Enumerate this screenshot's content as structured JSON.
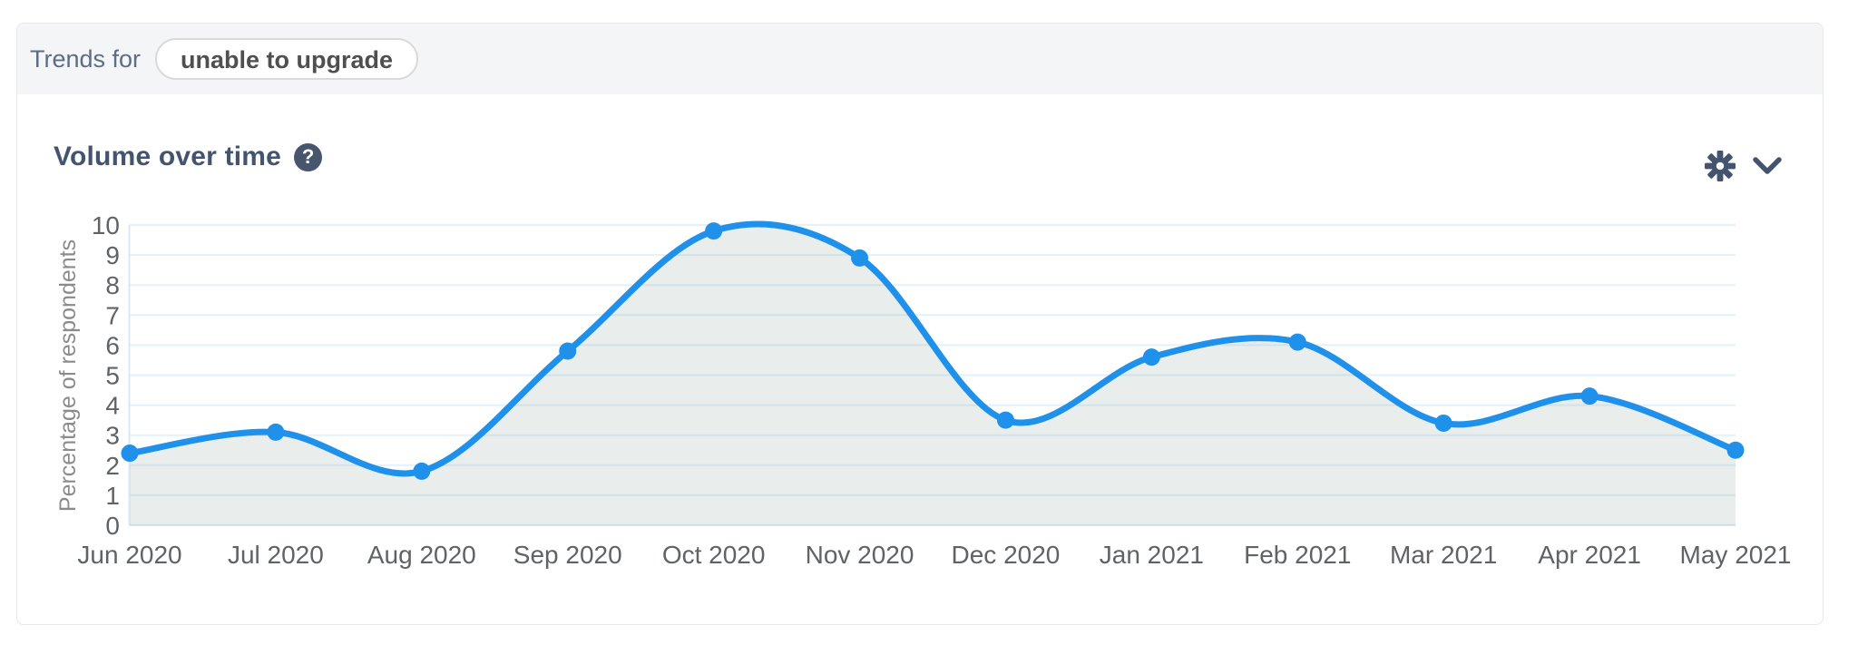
{
  "trends_bar": {
    "label": "Trends for",
    "keyword": "unable to upgrade"
  },
  "panel": {
    "title": "Volume over time",
    "icons": {
      "help": "?",
      "gear": "gear-icon",
      "chevron": "chevron-down-icon"
    }
  },
  "colors": {
    "header_band": "#f4f5f7",
    "card_border": "#e7e8ea",
    "title_text": "#44546f",
    "trends_text": "#5e6c84",
    "pill_text": "#4f4f4f",
    "line": "#2091eb",
    "marker": "#2091eb",
    "fill": "#65867f",
    "fill_opacity": 0.14,
    "grid": "#e3f1fa",
    "axis": "#d7e9f5",
    "tick_text": "#606366",
    "ylabel_text": "#8b8b8b"
  },
  "chart_data": {
    "type": "area",
    "title": "Volume over time",
    "categories": [
      "Jun 2020",
      "Jul 2020",
      "Aug 2020",
      "Sep 2020",
      "Oct 2020",
      "Nov 2020",
      "Dec 2020",
      "Jan 2021",
      "Feb 2021",
      "Mar 2021",
      "Apr 2021",
      "May 2021"
    ],
    "values": [
      2.4,
      3.1,
      1.8,
      5.8,
      9.8,
      8.9,
      3.5,
      5.6,
      6.1,
      3.4,
      4.3,
      2.5
    ],
    "xlabel": "",
    "ylabel": "Percentage of respondents",
    "ylim": [
      0,
      10
    ],
    "yticks": [
      0,
      1,
      2,
      3,
      4,
      5,
      6,
      7,
      8,
      9,
      10
    ],
    "grid": true,
    "line_style": "spline",
    "legend": "none"
  }
}
